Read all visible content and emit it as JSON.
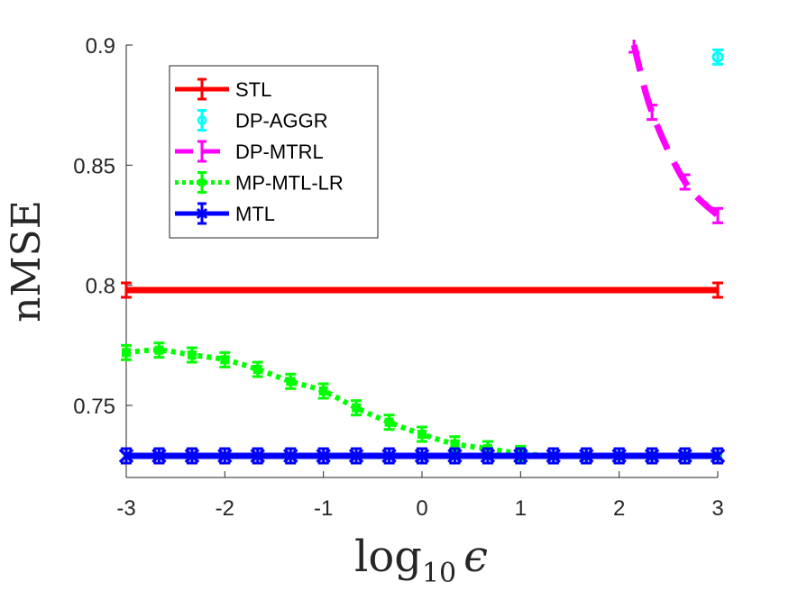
{
  "chart_data": {
    "type": "line",
    "xlabel_main": "log",
    "xlabel_sub": "10",
    "xlabel_symbol": "ϵ",
    "ylabel": "nMSE",
    "xlim": [
      -3,
      3
    ],
    "ylim": [
      0.72,
      0.9
    ],
    "xticks": [
      -3,
      -2,
      -1,
      0,
      1,
      2,
      3
    ],
    "xtick_labels": [
      "-3",
      "-2",
      "-1",
      "0",
      "1",
      "2",
      "3"
    ],
    "yticks": [
      0.75,
      0.8,
      0.85,
      0.9
    ],
    "ytick_labels": [
      "0.75",
      "0.8",
      "0.85",
      "0.9"
    ],
    "grid": false,
    "legend_position": "top-left",
    "series": [
      {
        "name": "STL",
        "color": "#ff0000",
        "style": "solid",
        "marker": "none",
        "x": [
          -3,
          3
        ],
        "y": [
          0.798,
          0.798
        ]
      },
      {
        "name": "DP-AGGR",
        "color": "#00ffff",
        "style": "solid",
        "marker": "circle",
        "x": [
          3
        ],
        "y": [
          0.895
        ]
      },
      {
        "name": "DP-MTRL",
        "color": "#ff00ff",
        "style": "dashed",
        "marker": "none",
        "x": [
          2.15,
          2.333,
          2.667,
          3
        ],
        "y": [
          0.9,
          0.872,
          0.843,
          0.829
        ]
      },
      {
        "name": "MP-MTL-LR",
        "color": "#00ff00",
        "style": "dotted",
        "marker": "square",
        "x": [
          -3,
          -2.667,
          -2.333,
          -2,
          -1.667,
          -1.333,
          -1,
          -0.667,
          -0.333,
          0,
          0.333,
          0.667,
          1,
          1.333,
          1.667,
          2,
          2.333,
          2.667,
          3
        ],
        "y": [
          0.772,
          0.773,
          0.771,
          0.769,
          0.765,
          0.76,
          0.756,
          0.749,
          0.743,
          0.738,
          0.734,
          0.732,
          0.73,
          0.729,
          0.729,
          0.729,
          0.729,
          0.729,
          0.729
        ]
      },
      {
        "name": "MTL",
        "color": "#0000ff",
        "style": "solid",
        "marker": "x",
        "x": [
          -3,
          -2.667,
          -2.333,
          -2,
          -1.667,
          -1.333,
          -1,
          -0.667,
          -0.333,
          0,
          0.333,
          0.667,
          1,
          1.333,
          1.667,
          2,
          2.333,
          2.667,
          3
        ],
        "y": [
          0.729,
          0.729,
          0.729,
          0.729,
          0.729,
          0.729,
          0.729,
          0.729,
          0.729,
          0.729,
          0.729,
          0.729,
          0.729,
          0.729,
          0.729,
          0.729,
          0.729,
          0.729,
          0.729
        ]
      }
    ]
  }
}
